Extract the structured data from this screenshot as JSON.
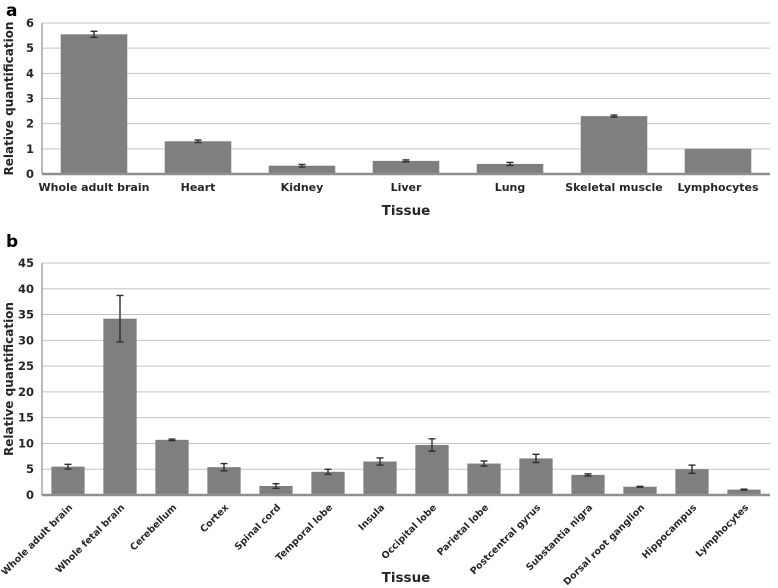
{
  "figure_title": "",
  "style": {
    "bar_color": "#7f7f7f",
    "grid_color": "#c3c3c3",
    "axis_color": "#8f8f8f",
    "error_bar_color": "#2e2e2e",
    "text_color": "#262626",
    "background": "#ffffff"
  },
  "chart_data": [
    {
      "type": "bar",
      "panel_label": "a",
      "title": "",
      "xlabel": "Tissue",
      "ylabel": "Relative quantification",
      "ylim": [
        0,
        6
      ],
      "ytick_step": 1,
      "ytick_labels": [
        "0",
        "1",
        "2",
        "3",
        "4",
        "5",
        "6"
      ],
      "grid": "horizontal",
      "legend_position": "none",
      "category_label_rotation": 0,
      "categories": [
        "Whole adult brain",
        "Heart",
        "Kidney",
        "Liver",
        "Lung",
        "Skeletal muscle",
        "Lymphocytes"
      ],
      "values": [
        5.55,
        1.3,
        0.33,
        0.52,
        0.4,
        2.3,
        1.0
      ],
      "errors": [
        0.12,
        0.05,
        0.05,
        0.04,
        0.06,
        0.04,
        0
      ]
    },
    {
      "type": "bar",
      "panel_label": "b",
      "title": "",
      "xlabel": "Tissue",
      "ylabel": "Relative quantification",
      "ylim": [
        0,
        45
      ],
      "ytick_step": 5,
      "ytick_labels": [
        "0",
        "5",
        "10",
        "15",
        "20",
        "25",
        "30",
        "35",
        "40",
        "45"
      ],
      "grid": "horizontal",
      "legend_position": "none",
      "category_label_rotation": -45,
      "categories": [
        "Whole adult brain",
        "Whole fetal brain",
        "Cerebellum",
        "Cortex",
        "Spinal cord",
        "Temporal lobe",
        "Insula",
        "Occipital lobe",
        "Parietal lobe",
        "Postcentral gyrus",
        "Substantia nigra",
        "Dorsal root ganglion",
        "Hippocampus",
        "Lymphocytes"
      ],
      "values": [
        5.5,
        34.2,
        10.7,
        5.4,
        1.75,
        4.5,
        6.5,
        9.7,
        6.1,
        7.1,
        3.9,
        1.6,
        5.0,
        1.05
      ],
      "errors": [
        0.45,
        4.5,
        0.15,
        0.7,
        0.45,
        0.5,
        0.7,
        1.2,
        0.5,
        0.8,
        0.2,
        0.08,
        0.8,
        0.08
      ]
    }
  ]
}
